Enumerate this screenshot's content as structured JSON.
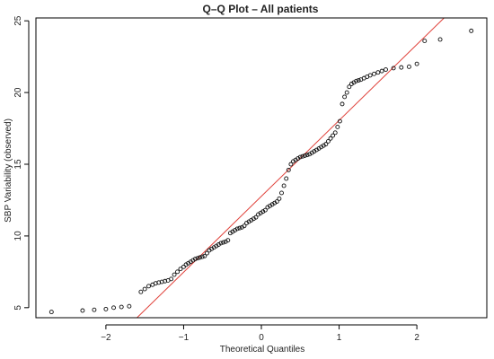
{
  "chart_data": {
    "type": "scatter",
    "title": "Q–Q Plot – All patients",
    "xlabel": "Theoretical Quantiles",
    "ylabel": "SBP Variability (observed)",
    "xlim": [
      -2.9,
      2.9
    ],
    "ylim": [
      4.3,
      25.2
    ],
    "xticks": [
      -2,
      -1,
      0,
      1,
      2
    ],
    "yticks": [
      5,
      10,
      15,
      20,
      25
    ],
    "grid": false,
    "legend": "none",
    "reference_line": {
      "x": [
        -1.6,
        2.35
      ],
      "y": [
        4.3,
        25.2
      ],
      "color": "#e0413a"
    },
    "point_color": "#111111",
    "series": [
      {
        "x": [
          -2.7,
          -2.3,
          -2.15,
          -2.0,
          -1.9,
          -1.8,
          -1.7,
          -1.55,
          -1.5,
          -1.45,
          -1.4,
          -1.36,
          -1.32,
          -1.28,
          -1.24,
          -1.2,
          -1.16,
          -1.12,
          -1.08,
          -1.04,
          -1.0,
          -0.97,
          -0.94,
          -0.91,
          -0.88,
          -0.85,
          -0.82,
          -0.79,
          -0.76,
          -0.73,
          -0.7,
          -0.67,
          -0.64,
          -0.61,
          -0.58,
          -0.55,
          -0.52,
          -0.49,
          -0.46,
          -0.43,
          -0.4,
          -0.37,
          -0.34,
          -0.31,
          -0.28,
          -0.25,
          -0.22,
          -0.19,
          -0.16,
          -0.13,
          -0.1,
          -0.07,
          -0.04,
          -0.01,
          0.02,
          0.05,
          0.08,
          0.11,
          0.14,
          0.17,
          0.2,
          0.23,
          0.26,
          0.29,
          0.32,
          0.35,
          0.38,
          0.41,
          0.44,
          0.47,
          0.5,
          0.53,
          0.56,
          0.59,
          0.62,
          0.65,
          0.68,
          0.71,
          0.74,
          0.77,
          0.8,
          0.83,
          0.86,
          0.89,
          0.92,
          0.95,
          0.98,
          1.01,
          1.04,
          1.07,
          1.1,
          1.13,
          1.16,
          1.19,
          1.22,
          1.25,
          1.28,
          1.32,
          1.36,
          1.4,
          1.45,
          1.5,
          1.55,
          1.6,
          1.7,
          1.8,
          1.9,
          2.0,
          2.1,
          2.3,
          2.7
        ],
        "y": [
          4.7,
          4.8,
          4.85,
          4.9,
          5.0,
          5.05,
          5.1,
          6.1,
          6.3,
          6.5,
          6.6,
          6.7,
          6.75,
          6.8,
          6.85,
          6.9,
          7.0,
          7.3,
          7.5,
          7.7,
          7.85,
          8.0,
          8.1,
          8.2,
          8.3,
          8.4,
          8.45,
          8.5,
          8.55,
          8.6,
          8.8,
          9.0,
          9.1,
          9.2,
          9.3,
          9.4,
          9.5,
          9.55,
          9.6,
          9.7,
          10.2,
          10.3,
          10.4,
          10.5,
          10.55,
          10.6,
          10.7,
          10.9,
          11.0,
          11.1,
          11.2,
          11.3,
          11.5,
          11.6,
          11.7,
          11.8,
          12.0,
          12.1,
          12.2,
          12.3,
          12.4,
          12.6,
          13.0,
          13.5,
          14.0,
          14.6,
          15.0,
          15.2,
          15.3,
          15.4,
          15.5,
          15.55,
          15.6,
          15.65,
          15.7,
          15.8,
          15.9,
          16.0,
          16.1,
          16.2,
          16.3,
          16.4,
          16.6,
          16.8,
          17.0,
          17.2,
          17.6,
          18.0,
          19.2,
          19.7,
          20.0,
          20.4,
          20.6,
          20.7,
          20.8,
          20.85,
          20.9,
          21.0,
          21.1,
          21.2,
          21.3,
          21.4,
          21.5,
          21.6,
          21.7,
          21.75,
          21.8,
          22.0,
          23.6,
          23.7,
          24.3
        ]
      }
    ]
  }
}
